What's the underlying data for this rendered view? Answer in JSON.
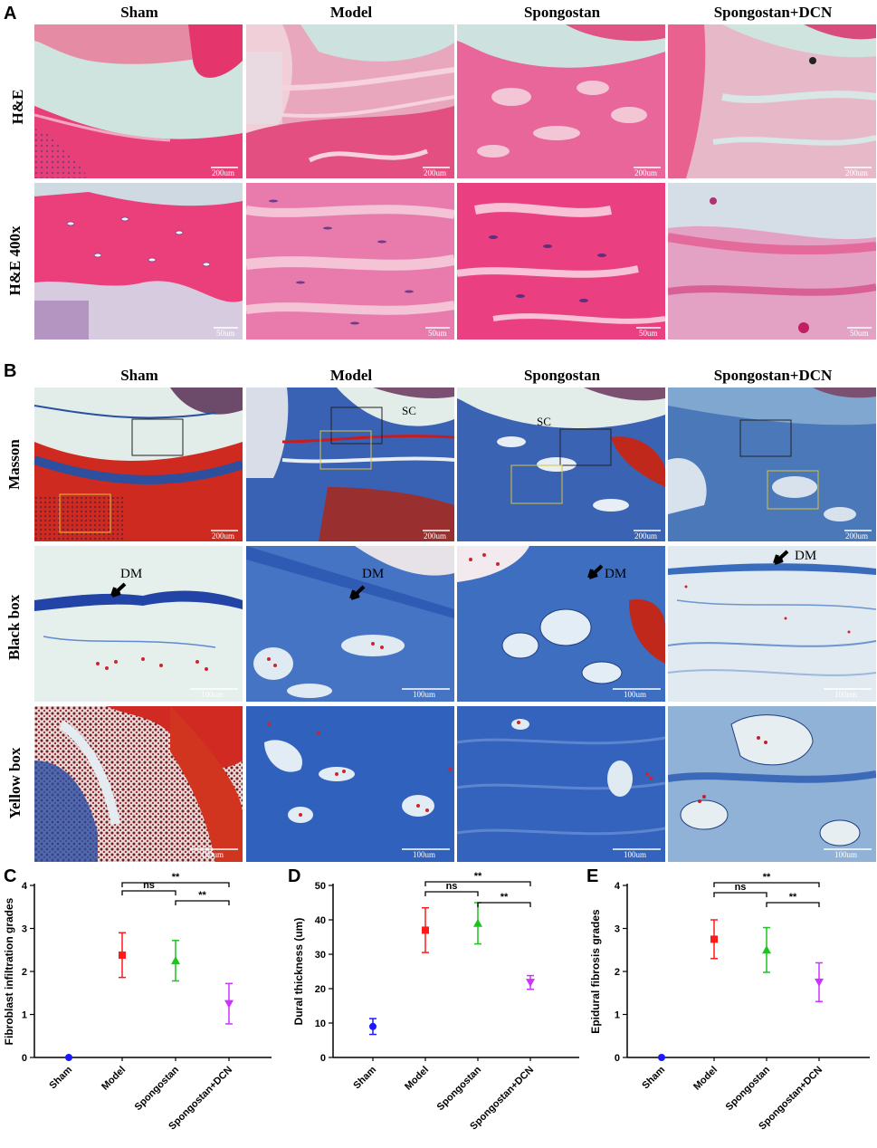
{
  "figure": {
    "panel_letters": [
      "A",
      "B",
      "C",
      "D",
      "E"
    ],
    "groups": [
      "Sham",
      "Model",
      "Spongostan",
      "Spongostan+DCN"
    ],
    "panel_a": {
      "rows": [
        "H&E",
        "H&E 400x"
      ],
      "scale_bars": [
        [
          "200um",
          "200um",
          "200um",
          "200um"
        ],
        [
          "50um",
          "50um",
          "50um",
          "50um"
        ]
      ]
    },
    "panel_b": {
      "rows": [
        "Masson",
        "Black box",
        "Yellow box"
      ],
      "scale_bars": [
        [
          "200um",
          "200um",
          "200um",
          "200um"
        ],
        [
          "100um",
          "100um",
          "100um",
          "100um"
        ],
        [
          "100um",
          "100um",
          "100um",
          "100um"
        ]
      ],
      "sc_label": "SC",
      "dm_label": "DM"
    }
  },
  "chart_data": [
    {
      "type": "scatter",
      "panel": "C",
      "categories": [
        "Sham",
        "Model",
        "Spongostan",
        "Spongostan+DCN"
      ],
      "ylabel": "Fibroblast infiltration grades",
      "ylim": [
        0,
        4
      ],
      "yticks": [
        "0",
        "1",
        "2",
        "3",
        "4"
      ],
      "means": [
        0.0,
        2.38,
        2.25,
        1.25
      ],
      "errors": [
        0.0,
        0.52,
        0.47,
        0.47
      ],
      "colors": [
        "#1a1aff",
        "#ff1a1a",
        "#1fc21f",
        "#cc33ff"
      ],
      "markers": [
        "circle",
        "square",
        "triangle-up",
        "triangle-down"
      ],
      "comparisons": [
        {
          "from": 1,
          "to": 3,
          "label": "**"
        },
        {
          "from": 1,
          "to": 2,
          "label": "ns"
        },
        {
          "from": 2,
          "to": 3,
          "label": "**"
        }
      ]
    },
    {
      "type": "scatter",
      "panel": "D",
      "categories": [
        "Sham",
        "Model",
        "Spongostan",
        "Spongostan+DCN"
      ],
      "ylabel": "Dural thickness (um)",
      "ylim": [
        0,
        50
      ],
      "yticks": [
        "0",
        "10",
        "20",
        "30",
        "40",
        "50"
      ],
      "means": [
        9.0,
        37.0,
        39.0,
        21.8
      ],
      "errors": [
        2.3,
        6.5,
        6.0,
        2.0
      ],
      "colors": [
        "#1a1aff",
        "#ff1a1a",
        "#1fc21f",
        "#cc33ff"
      ],
      "markers": [
        "circle",
        "square",
        "triangle-up",
        "triangle-down"
      ],
      "comparisons": [
        {
          "from": 1,
          "to": 3,
          "label": "**"
        },
        {
          "from": 1,
          "to": 2,
          "label": "ns"
        },
        {
          "from": 2,
          "to": 3,
          "label": "**"
        }
      ]
    },
    {
      "type": "scatter",
      "panel": "E",
      "categories": [
        "Sham",
        "Model",
        "Spongostan",
        "Spongostan+DCN"
      ],
      "ylabel": "Epidural fibrosis grades",
      "ylim": [
        0,
        4
      ],
      "yticks": [
        "0",
        "1",
        "2",
        "3",
        "4"
      ],
      "means": [
        0.0,
        2.75,
        2.5,
        1.75
      ],
      "errors": [
        0.0,
        0.45,
        0.52,
        0.45
      ],
      "colors": [
        "#1a1aff",
        "#ff1a1a",
        "#1fc21f",
        "#cc33ff"
      ],
      "markers": [
        "circle",
        "square",
        "triangle-up",
        "triangle-down"
      ],
      "comparisons": [
        {
          "from": 1,
          "to": 3,
          "label": "**"
        },
        {
          "from": 1,
          "to": 2,
          "label": "ns"
        },
        {
          "from": 2,
          "to": 3,
          "label": "**"
        }
      ]
    }
  ]
}
